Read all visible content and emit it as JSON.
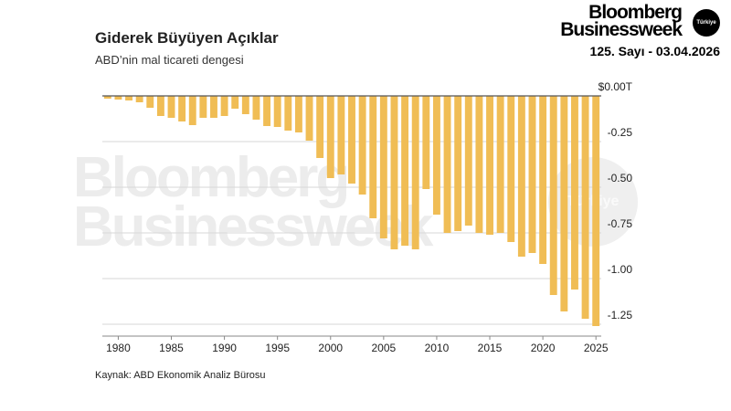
{
  "brand": {
    "line1": "Bloomberg",
    "line2": "Businessweek",
    "logo_text": "Türkiye",
    "issue": "125. Sayı - 03.04.2026"
  },
  "header": {
    "title": "Giderek Büyüyen Açıklar",
    "subtitle": "ABD’nin mal ticareti dengesi"
  },
  "footer": {
    "source": "Kaynak: ABD Ekonomik Analiz Bürosu"
  },
  "watermark": {
    "line1": "Bloomberg",
    "line2": "Businessweek",
    "circle": "Türkiye"
  },
  "colors": {
    "bar": "#f0bd55",
    "grid": "#d7d7d7",
    "zero_line": "#555555",
    "text": "#222222"
  },
  "chart_data": {
    "type": "bar",
    "title": "Giderek Büyüyen Açıklar",
    "subtitle": "ABD’nin mal ticareti dengesi",
    "xlabel": "",
    "ylabel": "",
    "ylim": [
      -1.3,
      0
    ],
    "yticks": [
      0,
      -0.25,
      -0.5,
      -0.75,
      -1.0,
      -1.25
    ],
    "ytick_labels": [
      "$0.00T",
      "-0.25",
      "-0.50",
      "-0.75",
      "-1.00",
      "-1.25"
    ],
    "xticks": [
      1980,
      1985,
      1990,
      1995,
      2000,
      2005,
      2010,
      2015,
      2020,
      2025
    ],
    "grid": true,
    "x": [
      1979,
      1980,
      1981,
      1982,
      1983,
      1984,
      1985,
      1986,
      1987,
      1988,
      1989,
      1990,
      1991,
      1992,
      1993,
      1994,
      1995,
      1996,
      1997,
      1998,
      1999,
      2000,
      2001,
      2002,
      2003,
      2004,
      2005,
      2006,
      2007,
      2008,
      2009,
      2010,
      2011,
      2012,
      2013,
      2014,
      2015,
      2016,
      2017,
      2018,
      2019,
      2020,
      2021,
      2022,
      2023,
      2024,
      2025
    ],
    "values": [
      -0.015,
      -0.02,
      -0.025,
      -0.035,
      -0.065,
      -0.11,
      -0.12,
      -0.14,
      -0.16,
      -0.12,
      -0.12,
      -0.11,
      -0.07,
      -0.1,
      -0.13,
      -0.165,
      -0.17,
      -0.19,
      -0.2,
      -0.245,
      -0.34,
      -0.45,
      -0.43,
      -0.48,
      -0.54,
      -0.67,
      -0.78,
      -0.84,
      -0.82,
      -0.84,
      -0.51,
      -0.65,
      -0.75,
      -0.74,
      -0.71,
      -0.75,
      -0.76,
      -0.75,
      -0.8,
      -0.88,
      -0.86,
      -0.92,
      -1.09,
      -1.18,
      -1.06,
      -1.22,
      -1.26
    ]
  }
}
